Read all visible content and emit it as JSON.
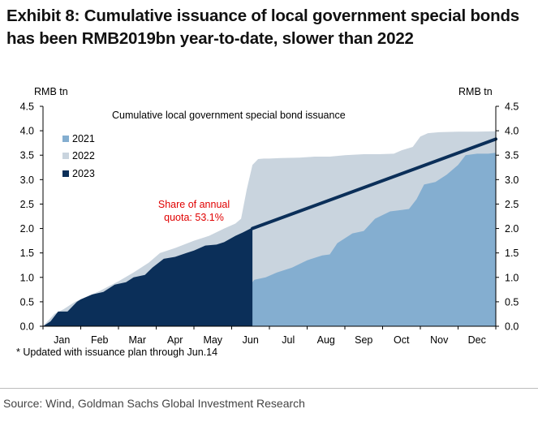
{
  "exhibit_title": {
    "line1": "Exhibit 8: Cumulative issuance of local government special bonds",
    "line2": "has been RMB2019bn year-to-date, slower than 2022"
  },
  "footnote": "* Updated with issuance plan through Jun.14",
  "source": "Source: Wind, Goldman Sachs Global Investment Research",
  "chart_data": {
    "type": "area",
    "title": "Cumulative local government special bond issuance",
    "ylabel_left": "RMB tn",
    "ylabel_right": "RMB tn",
    "ylim": [
      0,
      4.5
    ],
    "yticks": [
      0.0,
      0.5,
      1.0,
      1.5,
      2.0,
      2.5,
      3.0,
      3.5,
      4.0,
      4.5
    ],
    "ytick_labels": [
      "0.0",
      "0.5",
      "1.0",
      "1.5",
      "2.0",
      "2.5",
      "3.0",
      "3.5",
      "4.0",
      "4.5"
    ],
    "xlim": [
      0,
      12
    ],
    "month_ticks": [
      0,
      1,
      2,
      3,
      4,
      5,
      6,
      7,
      8,
      9,
      10,
      11
    ],
    "categories": [
      "Jan",
      "Feb",
      "Mar",
      "Apr",
      "May",
      "Jun",
      "Jul",
      "Aug",
      "Sep",
      "Oct",
      "Nov",
      "Dec"
    ],
    "legend_position": "top-left",
    "series": [
      {
        "name": "2022",
        "color": "#c9d4de",
        "x": [
          0,
          0.3,
          0.55,
          0.85,
          1.2,
          1.5,
          2.0,
          2.4,
          2.8,
          3.1,
          3.5,
          4.0,
          4.4,
          4.8,
          5.1,
          5.25,
          5.4,
          5.55,
          5.7,
          5.85,
          6.0,
          6.3,
          6.8,
          7.2,
          7.6,
          8.0,
          8.5,
          8.9,
          9.3,
          9.5,
          9.8,
          10.0,
          10.2,
          10.5,
          11.0,
          11.5,
          12.0
        ],
        "values": [
          0,
          0.25,
          0.35,
          0.5,
          0.62,
          0.72,
          0.92,
          1.1,
          1.3,
          1.5,
          1.6,
          1.75,
          1.85,
          2.0,
          2.1,
          2.2,
          2.8,
          3.3,
          3.42,
          3.43,
          3.43,
          3.44,
          3.45,
          3.47,
          3.47,
          3.5,
          3.52,
          3.52,
          3.53,
          3.6,
          3.67,
          3.88,
          3.95,
          3.97,
          3.98,
          3.98,
          3.99
        ]
      },
      {
        "name": "2021",
        "color": "#84aed0",
        "x": [
          0,
          0.5,
          1.0,
          1.5,
          2.0,
          2.5,
          3.0,
          3.5,
          4.0,
          4.5,
          5.0,
          5.55,
          5.6,
          5.9,
          6.2,
          6.6,
          7.0,
          7.4,
          7.6,
          7.8,
          8.2,
          8.5,
          8.8,
          9.2,
          9.5,
          9.7,
          9.9,
          10.1,
          10.4,
          10.7,
          11.0,
          11.2,
          11.5,
          11.8,
          12.0
        ],
        "values": [
          0,
          0.0,
          0.0,
          0.0,
          0.02,
          0.05,
          0.1,
          0.15,
          0.25,
          0.45,
          0.7,
          0.9,
          0.95,
          1.0,
          1.1,
          1.2,
          1.35,
          1.45,
          1.47,
          1.7,
          1.9,
          1.95,
          2.2,
          2.35,
          2.38,
          2.4,
          2.6,
          2.9,
          2.95,
          3.1,
          3.3,
          3.5,
          3.53,
          3.53,
          3.55
        ]
      },
      {
        "name": "2023",
        "color": "#0b2f59",
        "x": [
          0,
          0.2,
          0.4,
          0.65,
          0.9,
          1.0,
          1.3,
          1.6,
          1.9,
          2.2,
          2.4,
          2.7,
          2.9,
          3.2,
          3.5,
          3.8,
          4.0,
          4.3,
          4.6,
          4.8,
          5.1,
          5.3,
          5.55
        ],
        "values": [
          0,
          0.1,
          0.3,
          0.3,
          0.5,
          0.55,
          0.65,
          0.7,
          0.85,
          0.9,
          1.0,
          1.05,
          1.2,
          1.38,
          1.42,
          1.5,
          1.55,
          1.65,
          1.67,
          1.72,
          1.85,
          1.92,
          2.02
        ]
      }
    ],
    "projection_line": {
      "from": [
        5.55,
        2.0
      ],
      "to": [
        12.0,
        3.83
      ],
      "color": "#0b2f59"
    },
    "annotation": {
      "text_line1": "Share of annual",
      "text_line2": "quota: 53.1%",
      "color": "#e00000"
    }
  }
}
